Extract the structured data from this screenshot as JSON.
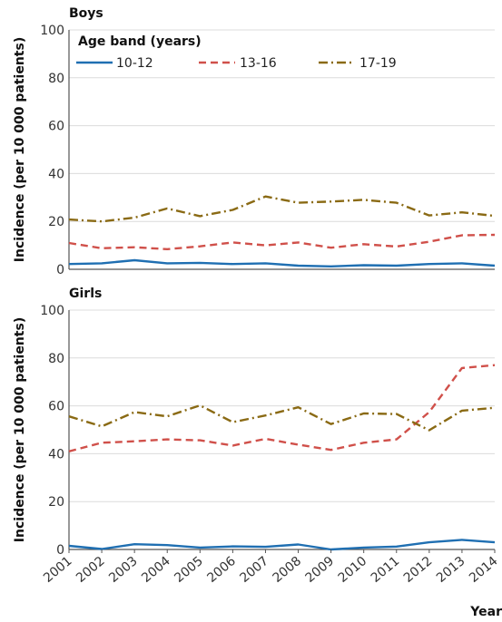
{
  "chart_data": [
    {
      "type": "line",
      "title": "Boys",
      "ylabel": "Incidence (per 10 000 patients)",
      "xlabel": "",
      "ylim": [
        0,
        100
      ],
      "yticks": [
        "0",
        "20",
        "40",
        "60",
        "80",
        "100"
      ],
      "x": [
        "2001",
        "2002",
        "2003",
        "2004",
        "2005",
        "2006",
        "2007",
        "2008",
        "2009",
        "2010",
        "2011",
        "2012",
        "2013",
        "2014"
      ],
      "grid": true,
      "legend": {
        "title": "Age band (years)",
        "placement": "top-left"
      },
      "series": [
        {
          "name": "10-12",
          "color": "#1f6fb2",
          "dash": "solid",
          "values": [
            2.2,
            2.5,
            3.8,
            2.5,
            2.7,
            2.2,
            2.5,
            1.5,
            1.2,
            1.7,
            1.5,
            2.2,
            2.5,
            1.5
          ]
        },
        {
          "name": "13-16",
          "color": "#d0504a",
          "dash": "dashed",
          "values": [
            11,
            8.8,
            9.2,
            8.4,
            9.6,
            11.2,
            10,
            11.2,
            9,
            10.5,
            9.5,
            11.5,
            14.2,
            14.4
          ]
        },
        {
          "name": "17-19",
          "color": "#8a6a14",
          "dash": "dashdot",
          "values": [
            20.8,
            20,
            21.6,
            25.4,
            22.2,
            24.8,
            30.4,
            27.8,
            28.3,
            29,
            27.8,
            22.5,
            23.8,
            22.3
          ]
        }
      ]
    },
    {
      "type": "line",
      "title": "Girls",
      "ylabel": "Incidence (per 10 000 patients)",
      "xlabel": "Year",
      "ylim": [
        0,
        100
      ],
      "yticks": [
        "0",
        "20",
        "40",
        "60",
        "80",
        "100"
      ],
      "x": [
        "2001",
        "2002",
        "2003",
        "2004",
        "2005",
        "2006",
        "2007",
        "2008",
        "2009",
        "2010",
        "2011",
        "2012",
        "2013",
        "2014"
      ],
      "grid": true,
      "series": [
        {
          "name": "10-12",
          "color": "#1f6fb2",
          "dash": "solid",
          "values": [
            1.5,
            0.2,
            2.2,
            1.8,
            0.8,
            1.3,
            1.1,
            2.1,
            0,
            0.8,
            1.2,
            3,
            4,
            3
          ]
        },
        {
          "name": "13-16",
          "color": "#d0504a",
          "dash": "dashed",
          "values": [
            41,
            44.6,
            45.2,
            46,
            45.6,
            43.4,
            46.2,
            43.8,
            41.6,
            44.6,
            46,
            57.4,
            75.8,
            77
          ]
        },
        {
          "name": "17-19",
          "color": "#8a6a14",
          "dash": "dashdot",
          "values": [
            55.6,
            51.4,
            57.4,
            55.6,
            60.2,
            53.2,
            56,
            59.4,
            52.4,
            56.8,
            56.6,
            49.8,
            58,
            59.2
          ]
        }
      ]
    }
  ]
}
